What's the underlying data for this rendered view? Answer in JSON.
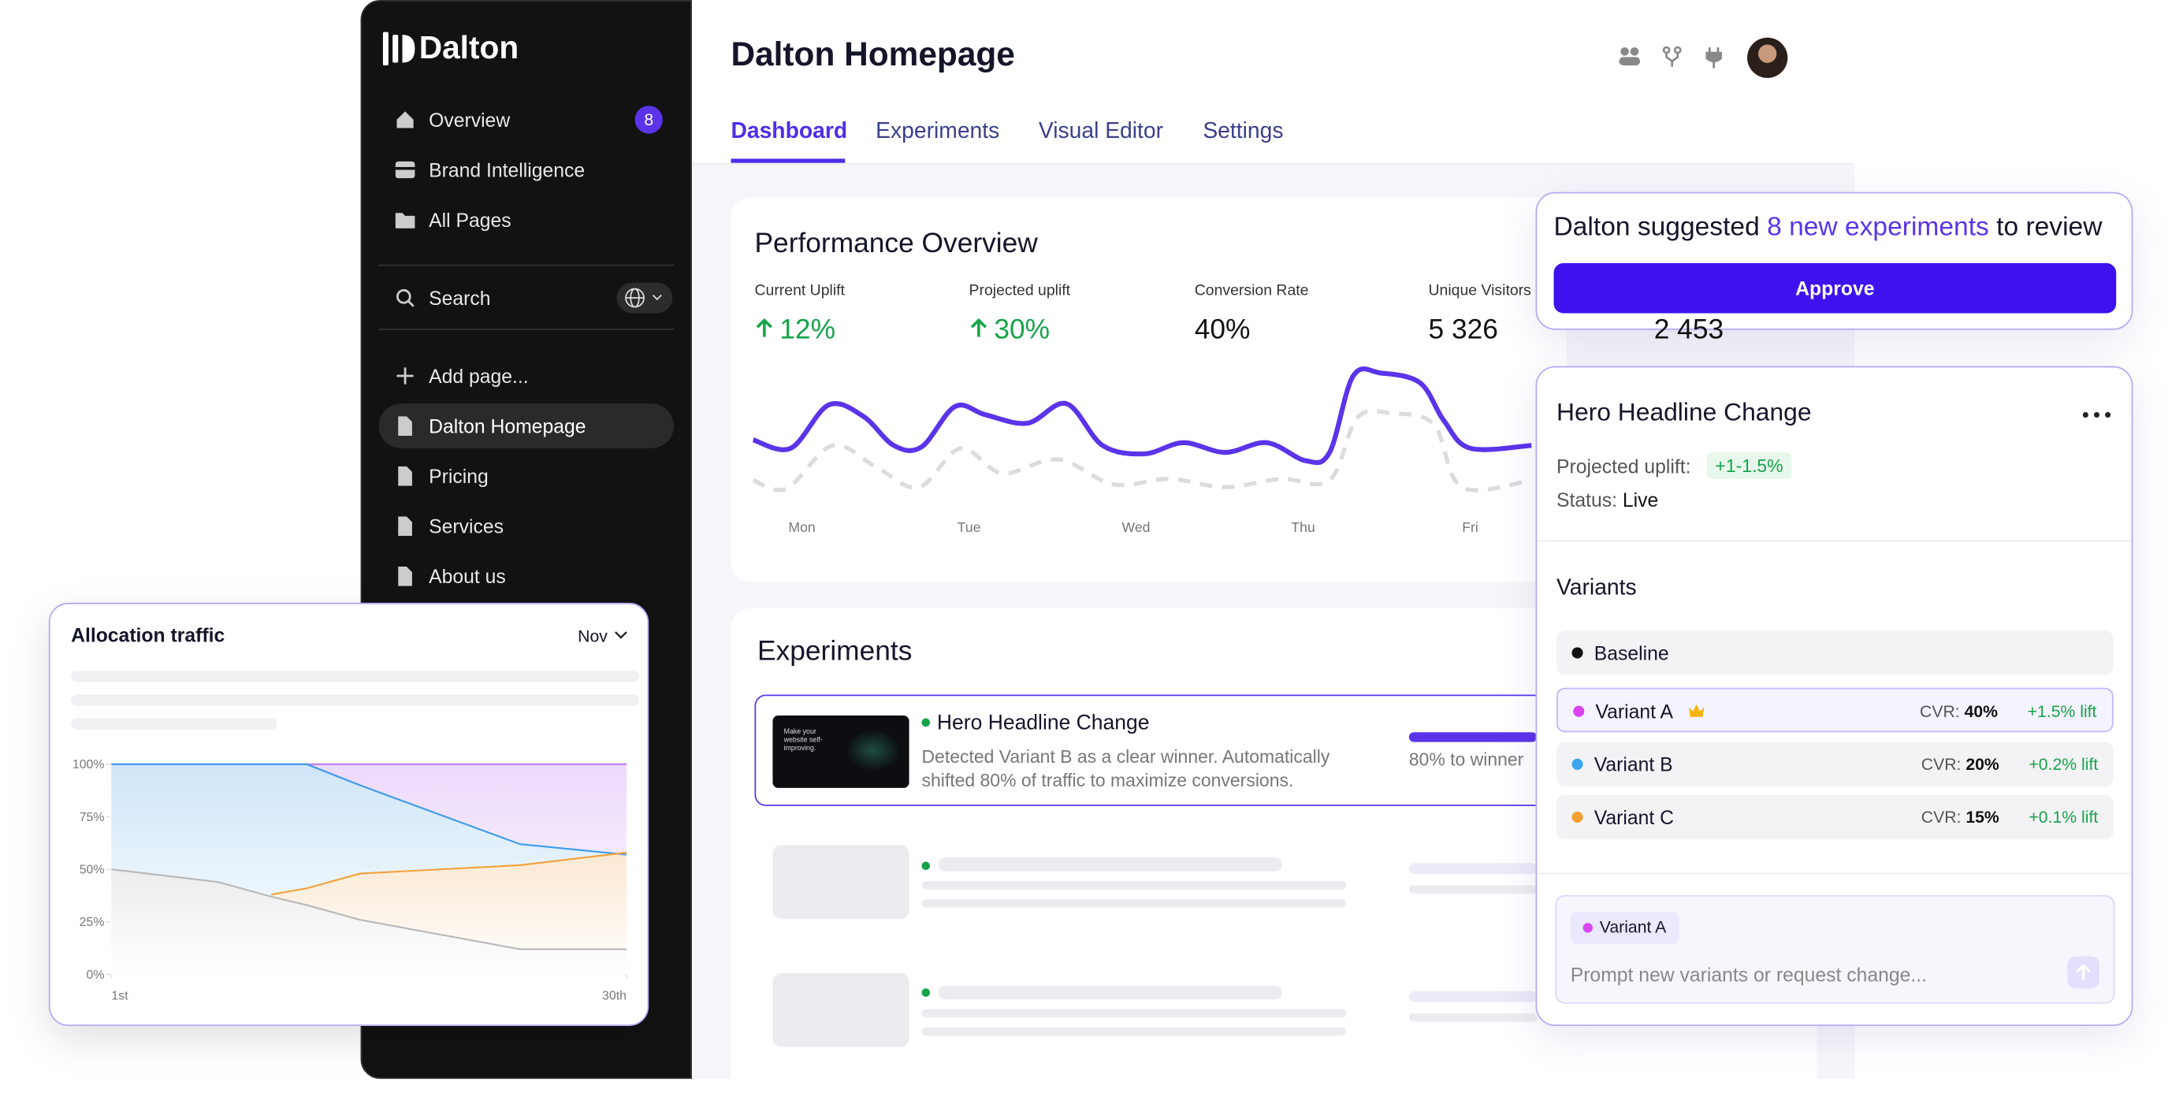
{
  "sidebar": {
    "brand": "Dalton",
    "nav": [
      {
        "label": "Overview",
        "badge": "8"
      },
      {
        "label": "Brand Intelligence"
      },
      {
        "label": "All Pages"
      }
    ],
    "search": "Search",
    "pages": [
      "Add page...",
      "Dalton Homepage",
      "Pricing",
      "Services",
      "About us"
    ]
  },
  "header": {
    "title": "Dalton Homepage",
    "tabs": [
      "Dashboard",
      "Experiments",
      "Visual Editor",
      "Settings"
    ]
  },
  "performance": {
    "title": "Performance Overview",
    "metrics": [
      {
        "label": "Current Uplift",
        "value": "12%"
      },
      {
        "label": "Projected uplift",
        "value": "30%"
      },
      {
        "label": "Conversion Rate",
        "value": "40%"
      },
      {
        "label": "Unique Visitors",
        "value": "5 326"
      },
      {
        "value": "2 453"
      }
    ],
    "days": [
      "Mon",
      "Tue",
      "Wed",
      "Thu",
      "Fri"
    ]
  },
  "experiments": {
    "title": "Experiments",
    "item": {
      "thumb_text": "Make your website self-improving.",
      "title": "Hero Headline Change",
      "description": "Detected Variant B as a clear winner. Automatically shifted 80% of traffic to maximize conversions.",
      "progress": "80% to winner"
    }
  },
  "suggestion": {
    "text_before": "Dalton suggested",
    "link": "8 new experiments",
    "text_after": "to review",
    "button": "Approve"
  },
  "detail": {
    "title": "Hero Headline Change",
    "uplift_label": "Projected uplift:",
    "uplift": "+1-1.5%",
    "status_label": "Status:",
    "status": "Live",
    "variants_title": "Variants",
    "variants": [
      {
        "name": "Baseline"
      },
      {
        "name": "Variant A",
        "cvr_label": "CVR:",
        "cvr": "40%",
        "lift": "+1.5% lift"
      },
      {
        "name": "Variant B",
        "cvr_label": "CVR:",
        "cvr": "20%",
        "lift": "+0.2% lift"
      },
      {
        "name": "Variant C",
        "cvr_label": "CVR:",
        "cvr": "15%",
        "lift": "+0.1% lift"
      }
    ],
    "chip": "Variant A",
    "placeholder": "Prompt new variants or request change..."
  },
  "chart_data": {
    "type": "area",
    "title": "Allocation traffic",
    "period": "Nov",
    "x": [
      1,
      7,
      10,
      12,
      15,
      24,
      30
    ],
    "xlim": [
      1,
      30
    ],
    "xticks": [
      {
        "value": 1,
        "label": "1st"
      },
      {
        "value": 30,
        "label": "30th"
      }
    ],
    "ylim": [
      0,
      100
    ],
    "yticks": [
      {
        "value": 0,
        "label": "0%"
      },
      {
        "value": 25,
        "label": "25%"
      },
      {
        "value": 50,
        "label": "50%"
      },
      {
        "value": 75,
        "label": "75%"
      },
      {
        "value": 100,
        "label": "100%"
      }
    ],
    "series": [
      {
        "color": "#c27cf0",
        "fill": "#ecd9fb",
        "values": [
          100,
          100,
          100,
          100,
          100,
          100,
          100
        ]
      },
      {
        "color": "#3d9be9",
        "fill": "#cfe6f8",
        "values": [
          100,
          100,
          100,
          100,
          90,
          62,
          57
        ]
      },
      {
        "color": "#f3a13a",
        "fill": "#fbe8d2",
        "values": [
          null,
          null,
          38,
          41,
          48,
          52,
          58
        ]
      },
      {
        "color": "#b8b8b8",
        "fill": "#ececec",
        "values": [
          50,
          44,
          37,
          33,
          26,
          12,
          12
        ]
      }
    ]
  }
}
